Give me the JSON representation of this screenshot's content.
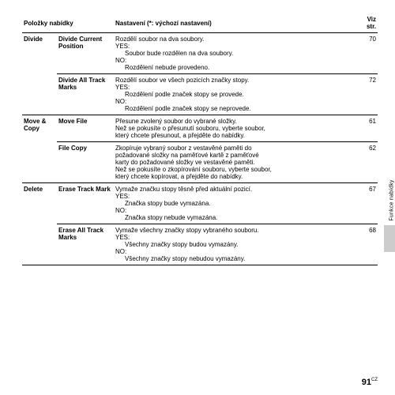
{
  "headers": {
    "col1": "Položky nabídky",
    "col2": "Nastavení (*: výchozí nastavení)",
    "col3": "Viz str."
  },
  "rows": [
    {
      "category": "Divide",
      "item": "Divide Current Position",
      "page": "70",
      "lines": [
        "Rozdělí soubor na dva soubory.",
        "YES:",
        "  Soubor bude rozdělen na dva soubory.",
        "NO:",
        "  Rozdělení nebude provedeno."
      ],
      "catBorder": false,
      "subBorder": false
    },
    {
      "category": "",
      "item": "Divide All Track Marks",
      "page": "72",
      "lines": [
        "Rozdělí soubor ve všech pozicích značky stopy.",
        "YES:",
        "  Rozdělení podle značek stopy se provede.",
        "NO:",
        "  Rozdělení podle značek stopy se neprovede."
      ],
      "catBorder": false,
      "subBorder": true
    },
    {
      "category": "Move & Copy",
      "item": "Move File",
      "page": "61",
      "lines": [
        "Přesune zvolený soubor do vybrané složky.",
        "Než se pokusíte o přesunutí souboru, vyberte soubor,",
        "který chcete přesunout, a přejděte do nabídky."
      ],
      "catBorder": true,
      "subBorder": false
    },
    {
      "category": "",
      "item": "File Copy",
      "page": "62",
      "lines": [
        "Zkopíruje vybraný soubor z vestavěné paměti do",
        "požadované složky na paměťové kartě z paměťové",
        "karty do požadované složky ve vestavěné paměti.",
        "Než se pokusíte o zkopírování souboru, vyberte soubor,",
        "který chcete kopírovat, a přejděte do nabídky."
      ],
      "catBorder": false,
      "subBorder": true
    },
    {
      "category": "Delete",
      "item": "Erase Track Mark",
      "page": "67",
      "lines": [
        "Vymaže značku stopy těsně před aktuální pozicí.",
        "YES:",
        "  Značka stopy bude vymazána.",
        "NO:",
        "  Značka stopy nebude vymazána."
      ],
      "catBorder": true,
      "subBorder": false
    },
    {
      "category": "",
      "item": "Erase All Track Marks",
      "page": "68",
      "lines": [
        "Vymaže všechny značky stopy vybraného souboru.",
        "YES:",
        "  Všechny značky stopy budou vymazány.",
        "NO:",
        "  Všechny značky stopy nebudou vymazány."
      ],
      "catBorder": false,
      "subBorder": true,
      "lastRow": true
    }
  ],
  "sideLabel": "Funkce nabídky",
  "pageNumber": "91",
  "pageSuffix": "CZ"
}
